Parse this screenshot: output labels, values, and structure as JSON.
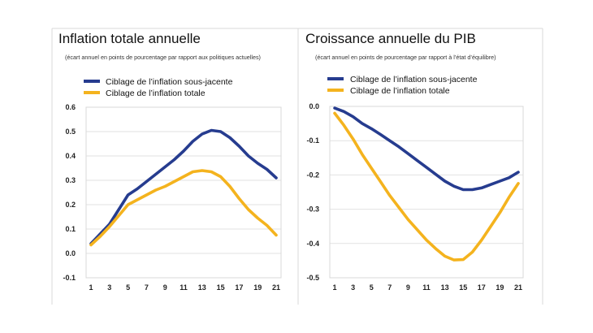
{
  "colors": {
    "core": "#263c8f",
    "headline": "#f4b31e"
  },
  "chart_data": [
    {
      "type": "line",
      "title": "Inflation totale annuelle",
      "subtitle": "(écart annuel en points de pourcentage par rapport aux politiques actuelles)",
      "xlabel": "",
      "ylabel": "",
      "x": [
        1,
        2,
        3,
        4,
        5,
        6,
        7,
        8,
        9,
        10,
        11,
        12,
        13,
        14,
        15,
        16,
        17,
        18,
        19,
        20,
        21
      ],
      "xticks": [
        1,
        3,
        5,
        7,
        9,
        11,
        13,
        15,
        17,
        19,
        21
      ],
      "xtick_labels": [
        "1",
        "3",
        "5",
        "7",
        "9",
        "11",
        "13",
        "15",
        "17",
        "19",
        "21"
      ],
      "ylim": [
        -0.1,
        0.6
      ],
      "yticks": [
        -0.1,
        0.0,
        0.1,
        0.2,
        0.3,
        0.4,
        0.5,
        0.6
      ],
      "ytick_labels": [
        "-0.1",
        "0.0",
        "0.1",
        "0.2",
        "0.3",
        "0.4",
        "0.5",
        "0.6"
      ],
      "grid": "horizontal",
      "legend_position": "top-left",
      "series": [
        {
          "name": "Ciblage de l’inflation sous-jacente",
          "color": "#263c8f",
          "values": [
            0.04,
            0.08,
            0.12,
            0.18,
            0.24,
            0.265,
            0.295,
            0.325,
            0.355,
            0.385,
            0.42,
            0.46,
            0.49,
            0.505,
            0.5,
            0.475,
            0.44,
            0.4,
            0.37,
            0.345,
            0.31
          ]
        },
        {
          "name": "Ciblage de l’inflation totale",
          "color": "#f4b31e",
          "values": [
            0.035,
            0.07,
            0.11,
            0.155,
            0.2,
            0.22,
            0.24,
            0.26,
            0.275,
            0.295,
            0.315,
            0.335,
            0.34,
            0.335,
            0.315,
            0.275,
            0.225,
            0.18,
            0.145,
            0.115,
            0.075
          ]
        }
      ]
    },
    {
      "type": "line",
      "title": "Croissance annuelle du PIB",
      "subtitle": "(écart annuel en points de pourcentage par rapport à l’état d’équilibre)",
      "xlabel": "",
      "ylabel": "",
      "x": [
        1,
        2,
        3,
        4,
        5,
        6,
        7,
        8,
        9,
        10,
        11,
        12,
        13,
        14,
        15,
        16,
        17,
        18,
        19,
        20,
        21
      ],
      "xticks": [
        1,
        3,
        5,
        7,
        9,
        11,
        13,
        15,
        17,
        19,
        21
      ],
      "xtick_labels": [
        "1",
        "3",
        "5",
        "7",
        "9",
        "11",
        "13",
        "15",
        "17",
        "19",
        "21"
      ],
      "ylim": [
        -0.5,
        0.0
      ],
      "yticks": [
        0.0,
        -0.1,
        -0.2,
        -0.3,
        -0.4,
        -0.5
      ],
      "ytick_labels": [
        "0.0",
        "-0.1",
        "-0.2",
        "-0.3",
        "-0.4",
        "-0.5"
      ],
      "grid": "horizontal",
      "legend_position": "top-left",
      "series": [
        {
          "name": "Ciblage de l’inflation sous-jacente",
          "color": "#263c8f",
          "values": [
            -0.005,
            -0.015,
            -0.03,
            -0.05,
            -0.065,
            -0.082,
            -0.1,
            -0.118,
            -0.138,
            -0.158,
            -0.178,
            -0.198,
            -0.218,
            -0.233,
            -0.243,
            -0.243,
            -0.238,
            -0.228,
            -0.218,
            -0.208,
            -0.192
          ]
        },
        {
          "name": "Ciblage de l’inflation totale",
          "color": "#f4b31e",
          "values": [
            -0.02,
            -0.055,
            -0.095,
            -0.14,
            -0.18,
            -0.22,
            -0.26,
            -0.295,
            -0.33,
            -0.36,
            -0.39,
            -0.415,
            -0.437,
            -0.448,
            -0.447,
            -0.425,
            -0.39,
            -0.35,
            -0.31,
            -0.265,
            -0.225
          ]
        }
      ]
    }
  ]
}
